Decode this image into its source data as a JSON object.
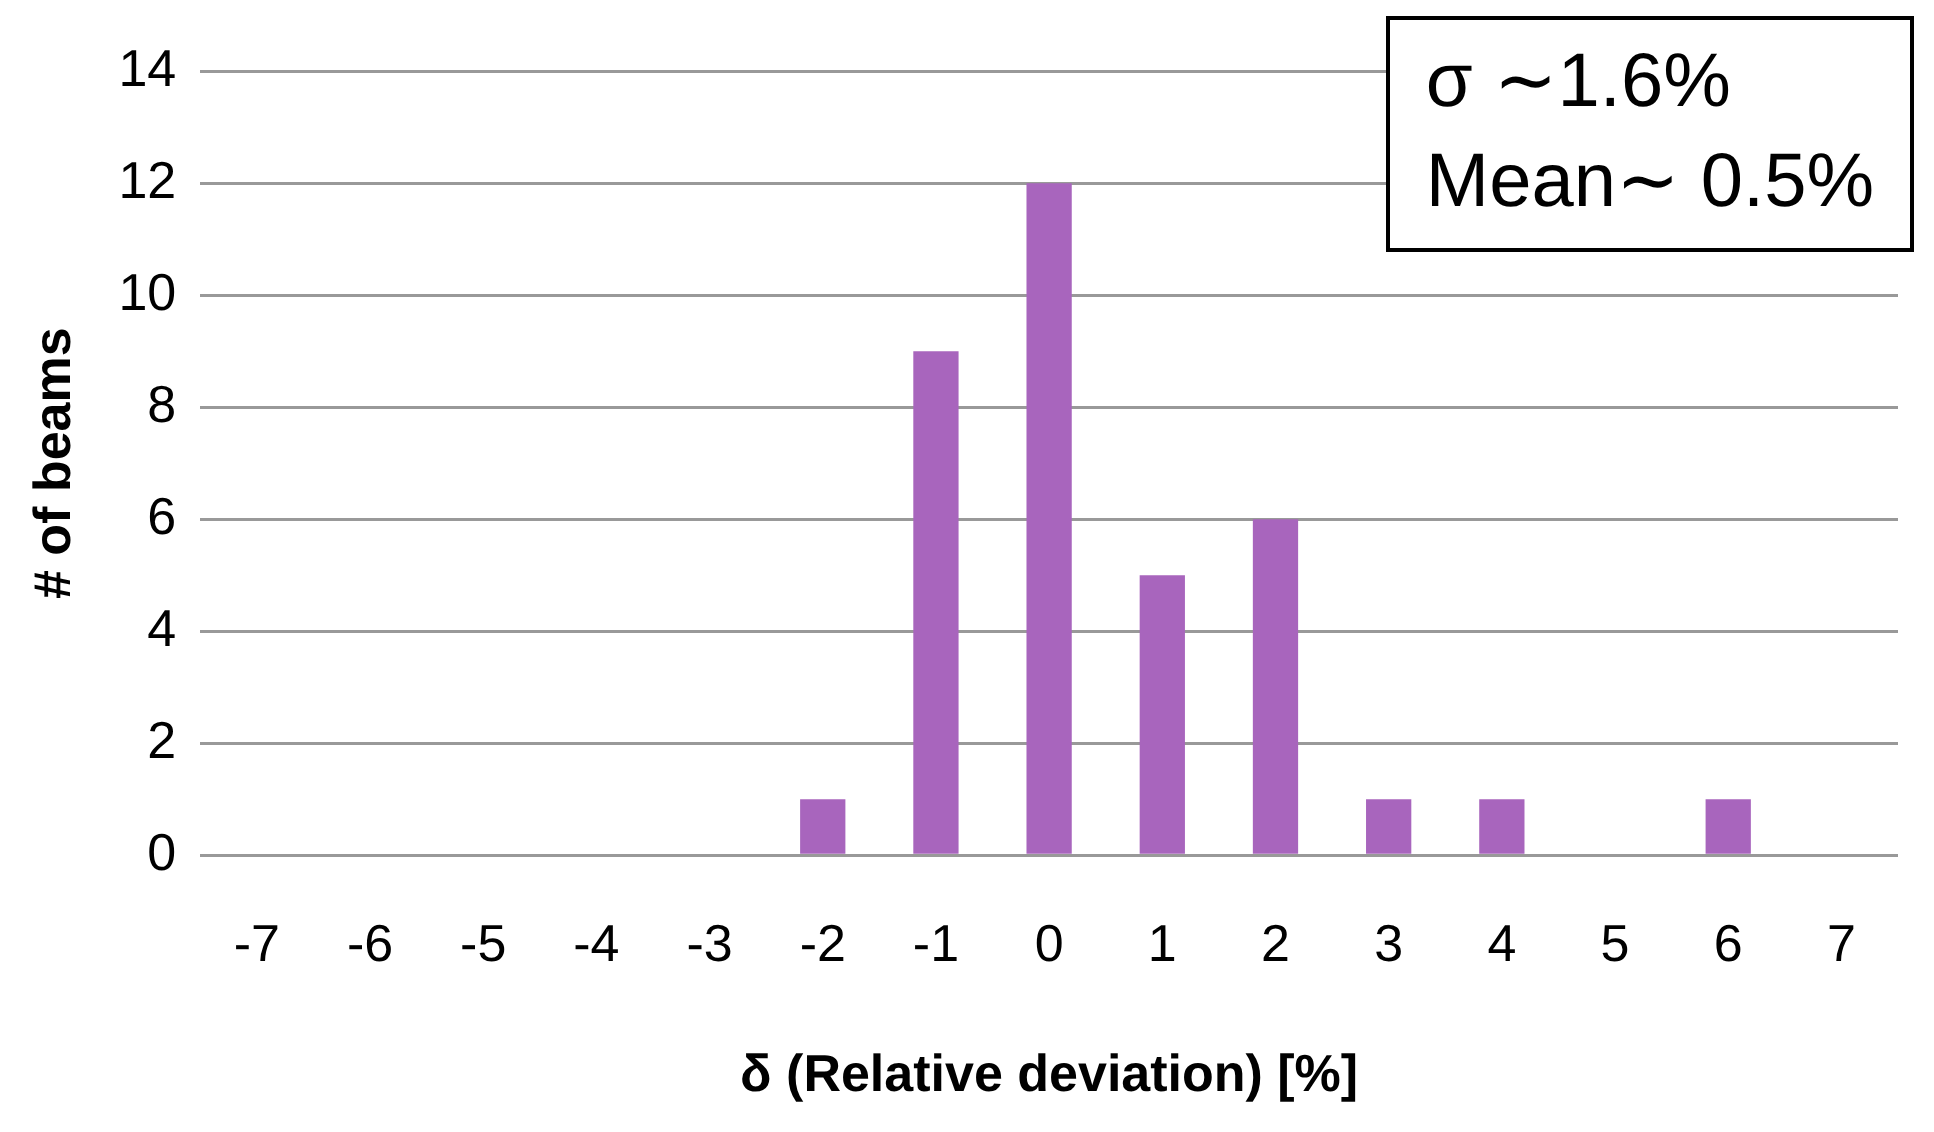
{
  "chart_data": {
    "type": "bar",
    "xlabel": "δ (Relative deviation) [%]",
    "ylabel": "# of beams",
    "categories": [
      "-7",
      "-6",
      "-5",
      "-4",
      "-3",
      "-2",
      "-1",
      "0",
      "1",
      "2",
      "3",
      "4",
      "5",
      "6",
      "7"
    ],
    "values": [
      0,
      0,
      0,
      0,
      0,
      1,
      9,
      12,
      5,
      6,
      1,
      1,
      0,
      1,
      0
    ],
    "color": "#a865bd",
    "ylim": [
      0,
      14
    ],
    "yticks": [
      0,
      2,
      4,
      6,
      8,
      10,
      12,
      14
    ],
    "grid": "y",
    "legend": false,
    "annotations": [
      "σ  ∼1.6%",
      "Mean∼ 0.5%"
    ]
  }
}
